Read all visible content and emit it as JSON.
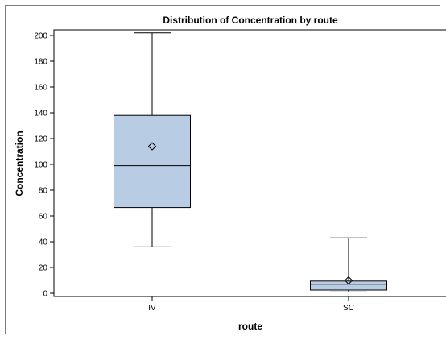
{
  "chart_data": {
    "type": "boxplot",
    "title": "Distribution of Concentration by route",
    "xlabel": "route",
    "ylabel": "Concentration",
    "categories": [
      "IV",
      "SC"
    ],
    "ylim": [
      0,
      202
    ],
    "yticks": [
      0,
      20,
      40,
      60,
      80,
      100,
      120,
      140,
      160,
      180,
      200
    ],
    "grid": false,
    "legend": "none",
    "box_fill": "#b8cce4",
    "box_stroke": "#000000",
    "boxes": [
      {
        "category": "IV",
        "min": 36,
        "q1": 66.5,
        "median": 99,
        "q3": 138,
        "max": 202,
        "mean": 114
      },
      {
        "category": "SC",
        "min": 1,
        "q1": 2.5,
        "median": 7,
        "q3": 9.5,
        "max": 43,
        "mean": 10
      }
    ]
  }
}
